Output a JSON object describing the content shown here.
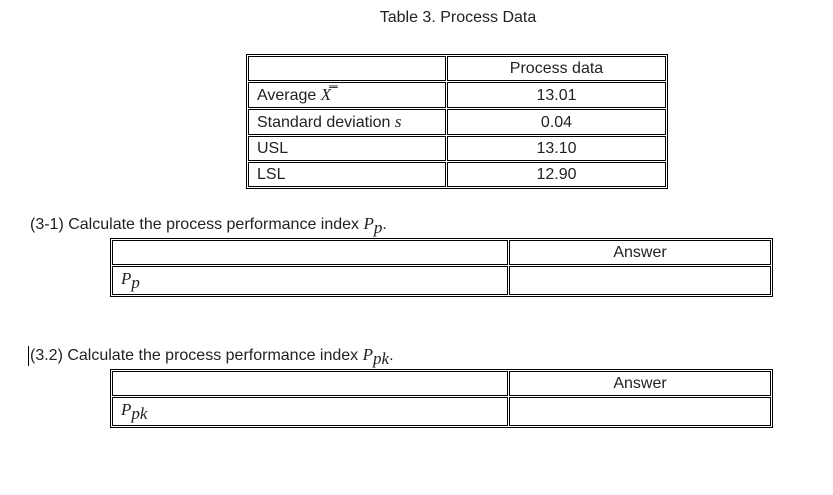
{
  "header": {
    "title": "Table 3. Process Data"
  },
  "table": {
    "column_header": "Process data",
    "rows": [
      {
        "label": "Average",
        "symbol": "X̿",
        "value": "13.01"
      },
      {
        "label": "Standard deviation",
        "symbol": "s",
        "value": "0.04"
      },
      {
        "label": "USL",
        "value": "13.10"
      },
      {
        "label": "LSL",
        "value": "12.90"
      }
    ]
  },
  "questions": [
    {
      "text": "(3-1) Calculate the process performance index",
      "symbol": "P",
      "subscript": "p",
      "end": ".",
      "answer_header": "Answer"
    },
    {
      "text": "(3.2) Calculate the process performance index",
      "symbol": "P",
      "subscript": "pk",
      "end": ".",
      "answer_header": "Answer"
    }
  ]
}
